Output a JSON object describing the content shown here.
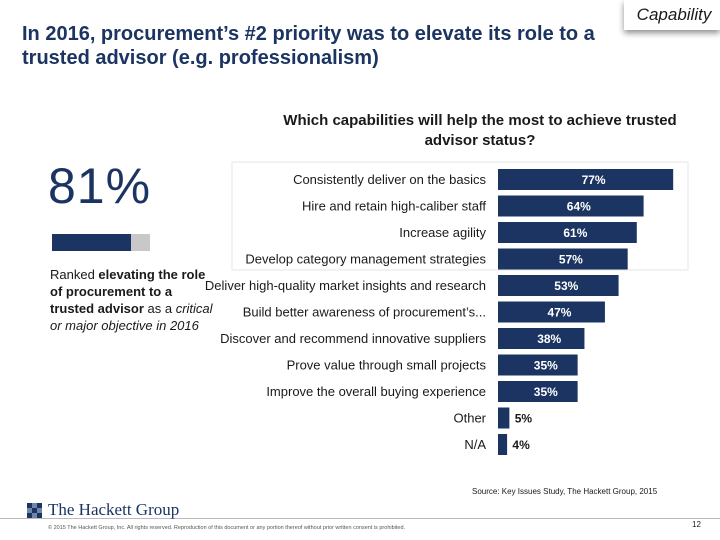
{
  "title": "In 2016, procurement’s #2 priority was to elevate its role to a trusted advisor (e.g. professionalism)",
  "tag": "Capability",
  "question": "Which capabilities will help the most to achieve trusted advisor status?",
  "stat": {
    "value": "81%",
    "fill_fraction": 0.81,
    "text_1": "Ranked ",
    "text_bold": "elevating the role of procurement to a trusted advisor",
    "text_2": " as a ",
    "text_italic": "critical or major objective in 2016"
  },
  "chart_data": {
    "type": "bar",
    "orientation": "horizontal",
    "title": "Which capabilities will help the most to achieve trusted advisor status?",
    "categories": [
      "Consistently deliver on the basics",
      "Hire and retain high-caliber staff",
      "Increase agility",
      "Develop category management strategies",
      "Deliver high-quality market insights and research",
      "Build better awareness of procurement’s...",
      "Discover and recommend innovative suppliers",
      "Prove value through small projects",
      "Improve the overall buying experience",
      "Other",
      "N/A"
    ],
    "values": [
      77,
      64,
      61,
      57,
      53,
      47,
      38,
      35,
      35,
      5,
      4
    ],
    "value_labels": [
      "77%",
      "64%",
      "61%",
      "57%",
      "53%",
      "47%",
      "38%",
      "35%",
      "35%",
      "5%",
      "4%"
    ],
    "xlim": [
      0,
      80
    ],
    "grid": false,
    "legend": "none",
    "bar_color": "#1b3461"
  },
  "source": "Source: Key Issues Study, The Hackett Group, 2015",
  "logo": {
    "text": "The Hackett Group"
  },
  "copyright": "© 2015 The Hackett Group, Inc. All rights reserved. Reproduction of this document or any portion thereof without prior written consent is prohibited.",
  "page_number": "12",
  "colors": {
    "brand_navy": "#1b3461",
    "bar_blue": "#1b3461",
    "gray": "#c8c8c8"
  }
}
